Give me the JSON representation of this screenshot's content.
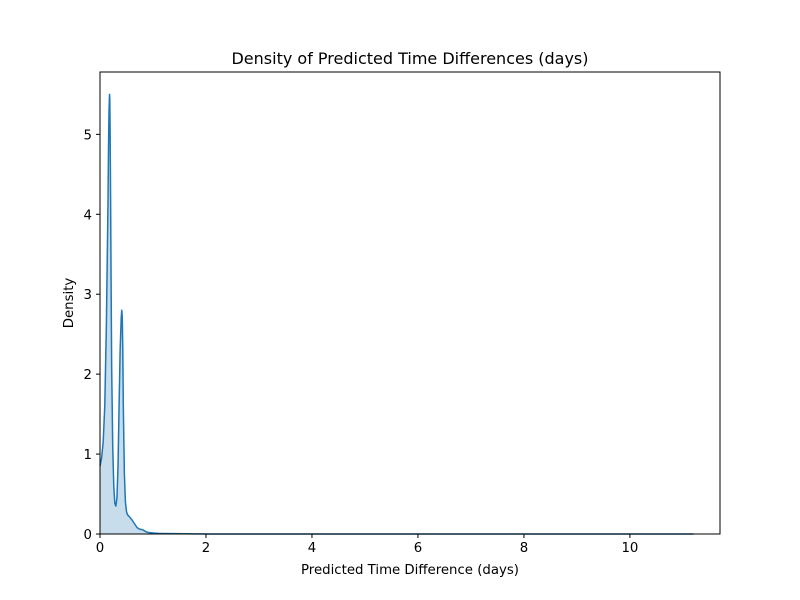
{
  "chart_data": {
    "type": "area",
    "title": "Density of Predicted Time Differences (days)",
    "xlabel": "Predicted Time Difference (days)",
    "ylabel": "Density",
    "xlim": [
      0,
      11.7
    ],
    "ylim": [
      0,
      5.78
    ],
    "xticks": [
      0,
      2,
      4,
      6,
      8,
      10
    ],
    "yticks": [
      0,
      1,
      2,
      3,
      4,
      5
    ],
    "grid": false,
    "legend": "none",
    "series": [
      {
        "color": "#1f77b4",
        "fill_color": "#1f77b4",
        "fill_opacity": 0.25,
        "x": [
          0,
          0.03,
          0.06,
          0.09,
          0.12,
          0.15,
          0.16,
          0.17,
          0.18,
          0.185,
          0.19,
          0.2,
          0.21,
          0.22,
          0.24,
          0.26,
          0.28,
          0.3,
          0.32,
          0.34,
          0.36,
          0.38,
          0.4,
          0.41,
          0.42,
          0.43,
          0.44,
          0.46,
          0.48,
          0.5,
          0.52,
          0.55,
          0.6,
          0.65,
          0.7,
          0.75,
          0.8,
          0.85,
          0.9,
          1.0,
          1.1,
          1.2,
          1.4,
          1.6,
          1.8,
          1.9,
          2.0,
          3.0,
          5.0,
          8.0,
          11.2
        ],
        "y": [
          0.85,
          0.95,
          1.15,
          1.6,
          2.6,
          4.1,
          4.8,
          5.3,
          5.5,
          5.45,
          5.1,
          4.2,
          3.1,
          2.1,
          1.1,
          0.6,
          0.38,
          0.35,
          0.45,
          0.85,
          1.6,
          2.3,
          2.7,
          2.8,
          2.72,
          2.3,
          1.6,
          0.75,
          0.4,
          0.28,
          0.24,
          0.22,
          0.18,
          0.13,
          0.08,
          0.06,
          0.055,
          0.035,
          0.02,
          0.012,
          0.008,
          0.006,
          0.004,
          0.003,
          0.002,
          0.002,
          0.0,
          0.0,
          0.0,
          0.0,
          0.0
        ]
      }
    ]
  }
}
